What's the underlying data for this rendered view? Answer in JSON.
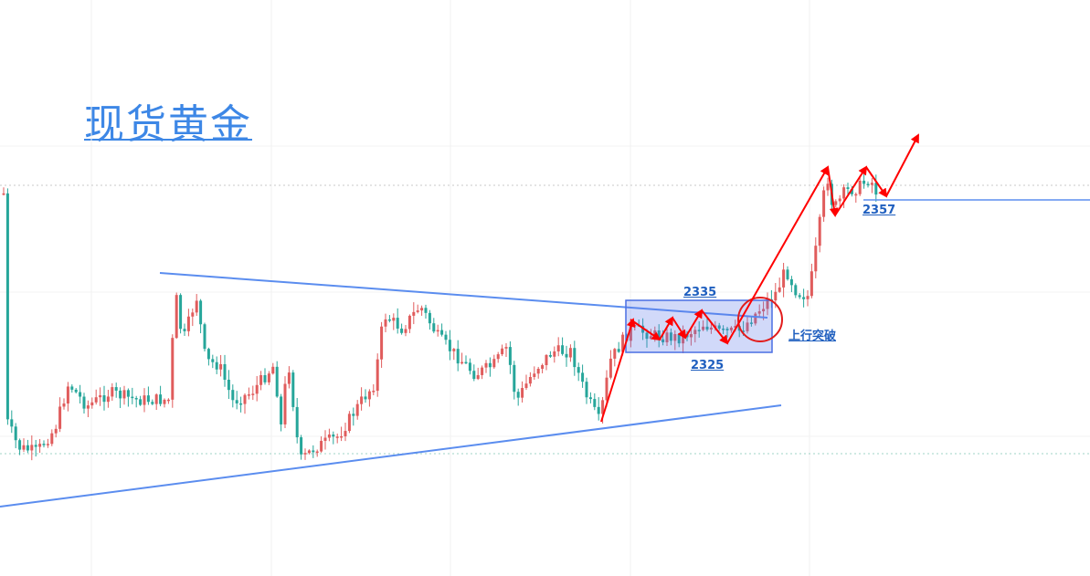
{
  "title": "现货黄金",
  "chart_data": {
    "type": "candlestick",
    "instrument": "现货黄金",
    "up_color": "#e05c5c",
    "down_color": "#26a69a",
    "range_box": {
      "top": 2335,
      "bottom": 2325,
      "color": "#4a6fe3"
    },
    "support_resistance": {
      "level": 2357
    },
    "annotations": [
      "2335",
      "2325",
      "2357",
      "上行突破"
    ],
    "breakout_label": "上行突破",
    "trend_lines": [
      "descending resistance",
      "ascending support"
    ],
    "projection_color": "#ff0000",
    "grid": true
  },
  "labels": {
    "box_top": "2335",
    "box_bottom": "2325",
    "level": "2357",
    "breakout": "上行突破"
  }
}
